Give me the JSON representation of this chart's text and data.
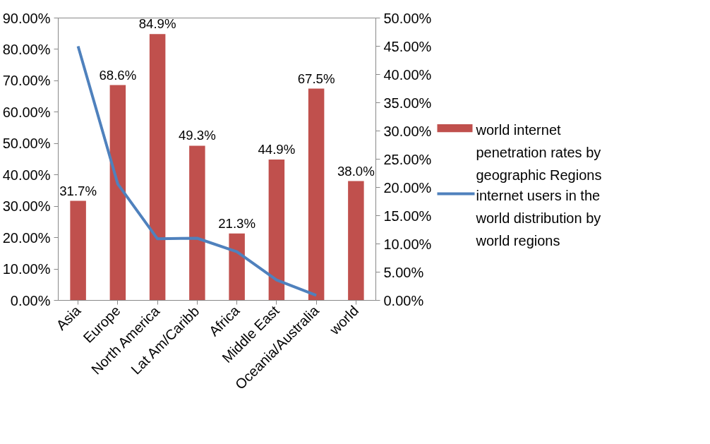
{
  "chart_data": {
    "type": "bar",
    "categories": [
      "Asia",
      "Europe",
      "North America",
      "Lat Am/Caribb",
      "Africa",
      "Middle East",
      "Oceania/Australia",
      "world"
    ],
    "series": [
      {
        "name": "world internet penetration rates by geographic Regions",
        "color": "#c0504d",
        "values": [
          31.7,
          68.6,
          84.9,
          49.3,
          21.3,
          44.9,
          67.5,
          38.0
        ],
        "value_labels": [
          "31.7%",
          "68.6%",
          "84.9%",
          "49.3%",
          "21.3%",
          "44.9%",
          "67.5%",
          "38.0%"
        ]
      },
      {
        "name": "internet users in the world distribution by world regions",
        "type": "line",
        "axis": "y2",
        "color": "#4f81bd",
        "values": [
          45.0,
          20.6,
          10.9,
          11.0,
          8.6,
          3.6,
          0.9,
          null
        ]
      }
    ],
    "ylim": [
      0,
      90
    ],
    "yticks": [
      {
        "value": 0,
        "label": "0.00%"
      },
      {
        "value": 10,
        "label": "10.00%"
      },
      {
        "value": 20,
        "label": "20.00%"
      },
      {
        "value": 30,
        "label": "30.00%"
      },
      {
        "value": 40,
        "label": "40.00%"
      },
      {
        "value": 50,
        "label": "50.00%"
      },
      {
        "value": 60,
        "label": "60.00%"
      },
      {
        "value": 70,
        "label": "70.00%"
      },
      {
        "value": 80,
        "label": "80.00%"
      },
      {
        "value": 90,
        "label": "90.00%"
      }
    ],
    "y2lim": [
      0,
      50
    ],
    "y2ticks": [
      {
        "value": 0,
        "label": "0.00%"
      },
      {
        "value": 5,
        "label": "5.00%"
      },
      {
        "value": 10,
        "label": "10.00%"
      },
      {
        "value": 15,
        "label": "15.00%"
      },
      {
        "value": 20,
        "label": "20.00%"
      },
      {
        "value": 25,
        "label": "25.00%"
      },
      {
        "value": 30,
        "label": "30.00%"
      },
      {
        "value": 35,
        "label": "35.00%"
      },
      {
        "value": 40,
        "label": "40.00%"
      },
      {
        "value": 45,
        "label": "45.00%"
      },
      {
        "value": 50,
        "label": "50.00%"
      }
    ],
    "grid": false,
    "legend": "right",
    "marker": "none",
    "line_style": "solid"
  }
}
